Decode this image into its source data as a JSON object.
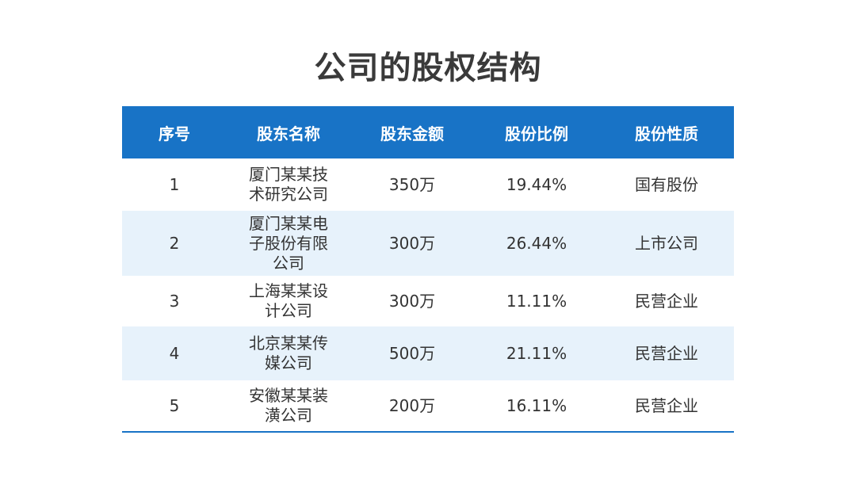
{
  "title": "公司的股权结构",
  "colors": {
    "header_bg": "#1873c6",
    "stripe_bg": "#e7f2fb",
    "title_text": "#3a3a3a"
  },
  "table": {
    "headers": [
      "序号",
      "股东名称",
      "股东金额",
      "股份比例",
      "股份性质"
    ],
    "rows": [
      {
        "no": "1",
        "name": "厦门某某技术研究公司",
        "amount": "350万",
        "ratio": "19.44%",
        "nature": "国有股份"
      },
      {
        "no": "2",
        "name": "厦门某某电子股份有限公司",
        "amount": "300万",
        "ratio": "26.44%",
        "nature": "上市公司"
      },
      {
        "no": "3",
        "name": "上海某某设计公司",
        "amount": "300万",
        "ratio": "11.11%",
        "nature": "民营企业"
      },
      {
        "no": "4",
        "name": "北京某某传媒公司",
        "amount": "500万",
        "ratio": "21.11%",
        "nature": "民营企业"
      },
      {
        "no": "5",
        "name": "安徽某某装潢公司",
        "amount": "200万",
        "ratio": "16.11%",
        "nature": "民营企业"
      }
    ]
  }
}
